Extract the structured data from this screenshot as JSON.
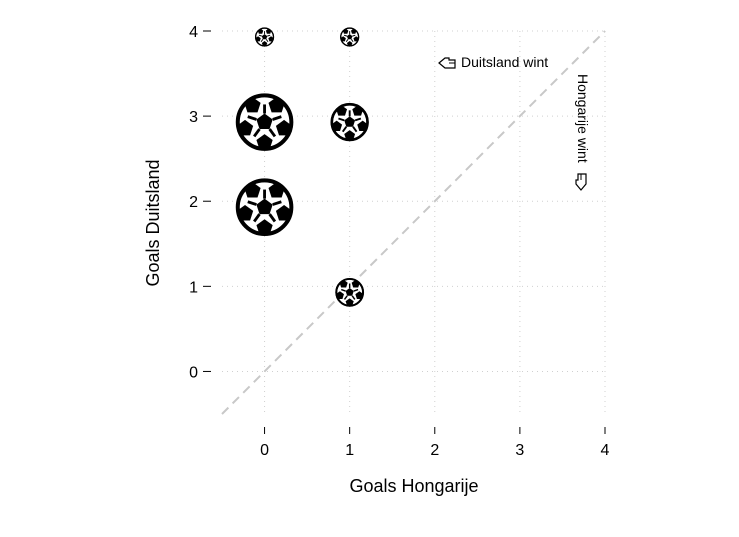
{
  "chart_data": {
    "type": "scatter",
    "xlabel": "Goals Hongarije",
    "ylabel": "Goals Duitsland",
    "xlim": [
      -0.5,
      4
    ],
    "ylim": [
      -0.5,
      4
    ],
    "x_ticks": [
      "0",
      "1",
      "2",
      "3",
      "4"
    ],
    "y_ticks": [
      "0",
      "1",
      "2",
      "3",
      "4"
    ],
    "grid": true,
    "marker": "soccer-ball-icon",
    "points": [
      {
        "x": 0,
        "y": 4,
        "size": 1
      },
      {
        "x": 1,
        "y": 4,
        "size": 1
      },
      {
        "x": 0,
        "y": 3,
        "size": 3
      },
      {
        "x": 1,
        "y": 3,
        "size": 2
      },
      {
        "x": 0,
        "y": 2,
        "size": 3
      },
      {
        "x": 1,
        "y": 1,
        "size": 1.5
      }
    ],
    "reference_line": {
      "type": "diagonal",
      "style": "dashed",
      "color": "#c8c8c8"
    },
    "annotations": {
      "germany_wins": "Duitsland wint",
      "hungary_wins": "Hongarije wint"
    }
  }
}
